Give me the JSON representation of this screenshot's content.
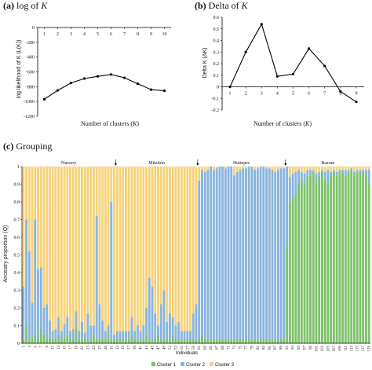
{
  "panels": {
    "a": {
      "letter": "(a)",
      "title_prefix": "log of ",
      "title_var": "K"
    },
    "b": {
      "letter": "(b)",
      "title_prefix": "Delta of ",
      "title_var": "K"
    },
    "c": {
      "letter": "(c)",
      "title_prefix": "Grouping",
      "title_var": ""
    }
  },
  "colors": {
    "line": "#000000",
    "cluster1": "#7dc36b",
    "cluster2": "#8ab4de",
    "cluster3": "#f6d27a",
    "axis": "#000000"
  },
  "chart_data": [
    {
      "type": "line",
      "panel": "a",
      "x": [
        1,
        2,
        3,
        4,
        5,
        6,
        7,
        8,
        9,
        10
      ],
      "y": [
        -970,
        -850,
        -750,
        -690,
        -660,
        -635,
        -680,
        -760,
        -840,
        -855
      ],
      "xlabel_prefix": "Number of clusters (",
      "xlabel_var": "K",
      "xlabel_suffix": ")",
      "ylabel": "log likelihood of K (L(K))",
      "xlim": [
        0.5,
        10.5
      ],
      "ylim": [
        -1200,
        0
      ],
      "xticks": [
        "1",
        "2",
        "3",
        "4",
        "5",
        "6",
        "7",
        "8",
        "9",
        "10"
      ],
      "yticks": [
        "0",
        "-200",
        "-400",
        "-600",
        "-800",
        "-1000",
        "-1200"
      ],
      "xaxis_position": "top"
    },
    {
      "type": "line",
      "panel": "b",
      "x": [
        1,
        2,
        3,
        4,
        5,
        6,
        7,
        8,
        9
      ],
      "y": [
        0.0,
        0.3,
        0.54,
        0.09,
        0.11,
        0.33,
        0.18,
        -0.04,
        -0.13
      ],
      "xlabel_prefix": "Number of clusters (",
      "xlabel_var": "K",
      "xlabel_suffix": ")",
      "ylabel": "Delta K (ΔK)",
      "xlim": [
        0.5,
        9.5
      ],
      "ylim": [
        -0.2,
        0.6
      ],
      "xticks": [
        "1",
        "2",
        "3",
        "4",
        "5",
        "6",
        "7",
        "8",
        "9"
      ],
      "yticks": [
        "0.6",
        "0.5",
        "0.4",
        "0.3",
        "0.2",
        "0.1",
        "0",
        "-0.1",
        "-0.2"
      ]
    },
    {
      "type": "bar",
      "stacked": true,
      "panel": "c",
      "xlabel": "Individuals",
      "ylabel": "Ancestry proportion (Q)",
      "ylim": [
        0,
        1
      ],
      "yticks": [
        "1",
        "0.9",
        "0.8",
        "0.7",
        "0.6",
        "0.5",
        "0.4",
        "0.3",
        "0.2",
        "0.1",
        "0"
      ],
      "n_individuals": 119,
      "xtick_labels": [
        "1",
        "3",
        "5",
        "7",
        "9",
        "11",
        "13",
        "15",
        "17",
        "19",
        "21",
        "23",
        "25",
        "27",
        "29",
        "31",
        "33",
        "35",
        "37",
        "39",
        "41",
        "43",
        "45",
        "47",
        "49",
        "51",
        "53",
        "55",
        "57",
        "59",
        "61",
        "63",
        "65",
        "67",
        "69",
        "71",
        "73",
        "75",
        "77",
        "79",
        "81",
        "83",
        "85",
        "87",
        "89",
        "91",
        "93",
        "95",
        "97",
        "99",
        "101",
        "103",
        "105",
        "107",
        "109",
        "111",
        "113",
        "115",
        "117",
        "119"
      ],
      "groups": [
        {
          "name": "Nursery",
          "start": 1,
          "end": 32
        },
        {
          "name": "Mitzitón",
          "start": 33,
          "end": 60
        },
        {
          "name": "Huitepec",
          "start": 61,
          "end": 90
        },
        {
          "name": "Bazom",
          "start": 91,
          "end": 119
        }
      ],
      "series": [
        {
          "name": "Cluster 1",
          "values": [
            0.02,
            0.1,
            0.02,
            0.03,
            0.05,
            0.02,
            0.08,
            0.05,
            0.02,
            0.03,
            0.02,
            0.02,
            0.05,
            0.02,
            0.03,
            0.05,
            0.02,
            0.02,
            0.08,
            0.02,
            0.02,
            0.03,
            0.02,
            0.02,
            0.05,
            0.02,
            0.02,
            0.03,
            0.02,
            0.05,
            0.02,
            0.02,
            0.02,
            0.02,
            0.02,
            0.02,
            0.02,
            0.05,
            0.02,
            0.02,
            0.02,
            0.02,
            0.05,
            0.02,
            0.02,
            0.02,
            0.05,
            0.02,
            0.02,
            0.02,
            0.02,
            0.05,
            0.02,
            0.02,
            0.02,
            0.02,
            0.02,
            0.02,
            0.02,
            0.02,
            0.02,
            0.05,
            0.02,
            0.02,
            0.02,
            0.02,
            0.02,
            0.02,
            0.02,
            0.02,
            0.02,
            0.02,
            0.02,
            0.02,
            0.02,
            0.02,
            0.02,
            0.02,
            0.02,
            0.02,
            0.02,
            0.02,
            0.02,
            0.02,
            0.02,
            0.02,
            0.02,
            0.02,
            0.02,
            0.02,
            0.55,
            0.8,
            0.82,
            0.85,
            0.9,
            0.92,
            0.9,
            0.95,
            0.95,
            0.97,
            0.9,
            0.95,
            0.97,
            0.93,
            0.9,
            0.95,
            0.97,
            0.95,
            0.97,
            0.96,
            0.95,
            0.97,
            0.98,
            0.95,
            0.97,
            0.96,
            0.97,
            0.95,
            0.9
          ]
        },
        {
          "name": "Cluster 2",
          "values": [
            0.3,
            0.6,
            0.5,
            0.2,
            0.65,
            0.4,
            0.35,
            0.15,
            0.2,
            0.1,
            0.05,
            0.06,
            0.1,
            0.05,
            0.08,
            0.1,
            0.05,
            0.06,
            0.1,
            0.05,
            0.1,
            0.03,
            0.15,
            0.08,
            0.05,
            0.7,
            0.2,
            0.1,
            0.05,
            0.05,
            0.78,
            0.03,
            0.05,
            0.05,
            0.05,
            0.05,
            0.05,
            0.1,
            0.05,
            0.08,
            0.05,
            0.08,
            0.15,
            0.35,
            0.3,
            0.15,
            0.05,
            0.2,
            0.28,
            0.1,
            0.15,
            0.1,
            0.08,
            0.1,
            0.05,
            0.05,
            0.05,
            0.05,
            0.15,
            0.2,
            0.9,
            0.93,
            0.95,
            0.96,
            0.98,
            0.96,
            0.97,
            0.98,
            0.98,
            0.97,
            0.98,
            0.98,
            0.93,
            0.95,
            0.96,
            0.97,
            0.97,
            0.98,
            0.98,
            0.96,
            0.97,
            0.98,
            0.98,
            0.97,
            0.97,
            0.96,
            0.95,
            0.96,
            0.97,
            0.97,
            0.45,
            0.14,
            0.14,
            0.12,
            0.08,
            0.05,
            0.06,
            0.03,
            0.03,
            0.01,
            0.06,
            0.02,
            0.01,
            0.04,
            0.08,
            0.02,
            0.01,
            0.02,
            0.01,
            0.02,
            0.03,
            0.01,
            0.01,
            0.02,
            0.01,
            0.02,
            0.01,
            0.03,
            0.08
          ]
        }
      ]
    }
  ],
  "legend": [
    "Cluster 1",
    "Cluster 2",
    "Cluster 3"
  ]
}
